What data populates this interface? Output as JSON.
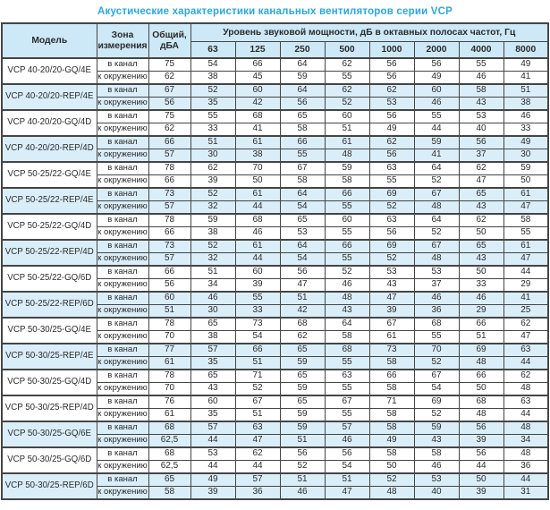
{
  "title": "Акустические характеристики канальных вентиляторов  серии VCP",
  "colors": {
    "title": "#29a8df",
    "header_bg": "#cde8f6",
    "shaded_row_bg": "#daeefa",
    "border": "#454545",
    "text": "#2b2b2b"
  },
  "table": {
    "headers": {
      "model": "Модель",
      "zone": "Зона\nизмерения",
      "total": "Общий,\nдБА",
      "bands": "Уровень звуковой мощности, дБ в октавных полосах частот, Гц"
    },
    "frequencies": [
      "63",
      "125",
      "250",
      "500",
      "1000",
      "2000",
      "4000",
      "8000"
    ],
    "zone_in_label": "в канал",
    "zone_out_label": "к окружению",
    "rows": [
      {
        "model": "VCP 40-20/20-GQ/4E",
        "shaded": false,
        "in_total": "75",
        "in_bands": [
          "54",
          "66",
          "64",
          "62",
          "56",
          "56",
          "55",
          "49"
        ],
        "out_total": "62",
        "out_bands": [
          "38",
          "45",
          "59",
          "55",
          "56",
          "49",
          "46",
          "41"
        ]
      },
      {
        "model": "VCP 40-20/20-REP/4E",
        "shaded": true,
        "in_total": "67",
        "in_bands": [
          "52",
          "60",
          "64",
          "62",
          "62",
          "60",
          "58",
          "51"
        ],
        "out_total": "56",
        "out_bands": [
          "35",
          "42",
          "56",
          "52",
          "53",
          "46",
          "43",
          "38"
        ]
      },
      {
        "model": "VCP 40-20/20-GQ/4D",
        "shaded": false,
        "in_total": "75",
        "in_bands": [
          "55",
          "68",
          "65",
          "60",
          "56",
          "55",
          "53",
          "46"
        ],
        "out_total": "62",
        "out_bands": [
          "33",
          "41",
          "58",
          "51",
          "49",
          "44",
          "40",
          "33"
        ]
      },
      {
        "model": "VCP 40-20/20-REP/4D",
        "shaded": true,
        "in_total": "66",
        "in_bands": [
          "51",
          "61",
          "66",
          "61",
          "62",
          "59",
          "56",
          "49"
        ],
        "out_total": "57",
        "out_bands": [
          "30",
          "38",
          "55",
          "48",
          "56",
          "41",
          "37",
          "30"
        ]
      },
      {
        "model": "VCP 50-25/22-GQ/4E",
        "shaded": false,
        "in_total": "78",
        "in_bands": [
          "62",
          "70",
          "67",
          "59",
          "63",
          "64",
          "62",
          "59"
        ],
        "out_total": "66",
        "out_bands": [
          "39",
          "50",
          "58",
          "58",
          "55",
          "52",
          "47",
          "50"
        ]
      },
      {
        "model": "VCP 50-25/22-REP/4E",
        "shaded": true,
        "in_total": "73",
        "in_bands": [
          "52",
          "61",
          "64",
          "66",
          "69",
          "67",
          "65",
          "61"
        ],
        "out_total": "57",
        "out_bands": [
          "32",
          "44",
          "54",
          "55",
          "52",
          "48",
          "43",
          "47"
        ]
      },
      {
        "model": "VCP 50-25/22-GQ/4D",
        "shaded": false,
        "in_total": "78",
        "in_bands": [
          "59",
          "68",
          "65",
          "60",
          "63",
          "64",
          "62",
          "58"
        ],
        "out_total": "66",
        "out_bands": [
          "38",
          "46",
          "53",
          "55",
          "56",
          "52",
          "50",
          "55"
        ]
      },
      {
        "model": "VCP 50-25/22-REP/4D",
        "shaded": true,
        "in_total": "73",
        "in_bands": [
          "52",
          "61",
          "64",
          "66",
          "69",
          "67",
          "65",
          "61"
        ],
        "out_total": "57",
        "out_bands": [
          "32",
          "44",
          "54",
          "55",
          "52",
          "48",
          "43",
          "47"
        ]
      },
      {
        "model": "VCP 50-25/22-GQ/6D",
        "shaded": false,
        "in_total": "66",
        "in_bands": [
          "51",
          "60",
          "56",
          "52",
          "53",
          "53",
          "50",
          "44"
        ],
        "out_total": "56",
        "out_bands": [
          "34",
          "39",
          "47",
          "46",
          "43",
          "37",
          "33",
          "29"
        ]
      },
      {
        "model": "VCP 50-25/22-REP/6D",
        "shaded": true,
        "in_total": "60",
        "in_bands": [
          "46",
          "55",
          "51",
          "48",
          "47",
          "46",
          "46",
          "41"
        ],
        "out_total": "51",
        "out_bands": [
          "30",
          "33",
          "42",
          "43",
          "39",
          "36",
          "29",
          "25"
        ]
      },
      {
        "model": "VCP 50-30/25-GQ/4E",
        "shaded": false,
        "in_total": "78",
        "in_bands": [
          "65",
          "73",
          "68",
          "64",
          "67",
          "68",
          "66",
          "62"
        ],
        "out_total": "70",
        "out_bands": [
          "38",
          "54",
          "62",
          "58",
          "61",
          "55",
          "51",
          "47"
        ]
      },
      {
        "model": "VCP 50-30/25-REP/4E",
        "shaded": true,
        "in_total": "77",
        "in_bands": [
          "57",
          "66",
          "65",
          "68",
          "73",
          "70",
          "69",
          "63"
        ],
        "out_total": "61",
        "out_bands": [
          "35",
          "51",
          "59",
          "55",
          "58",
          "52",
          "48",
          "44"
        ]
      },
      {
        "model": "VCP 50-30/25-GQ/4D",
        "shaded": false,
        "in_total": "78",
        "in_bands": [
          "65",
          "71",
          "65",
          "63",
          "66",
          "67",
          "66",
          "62"
        ],
        "out_total": "70",
        "out_bands": [
          "43",
          "52",
          "59",
          "55",
          "58",
          "54",
          "50",
          "48"
        ]
      },
      {
        "model": "VCP 50-30/25-REP/4D",
        "shaded": false,
        "in_total": "76",
        "in_bands": [
          "60",
          "67",
          "65",
          "67",
          "71",
          "69",
          "68",
          "63"
        ],
        "out_total": "61",
        "out_bands": [
          "35",
          "51",
          "59",
          "55",
          "58",
          "52",
          "48",
          "44"
        ]
      },
      {
        "model": "VCP 50-30/25-GQ/6E",
        "shaded": true,
        "in_total": "68",
        "in_bands": [
          "57",
          "63",
          "59",
          "57",
          "58",
          "59",
          "56",
          "48"
        ],
        "out_total": "62,5",
        "out_bands": [
          "44",
          "47",
          "51",
          "46",
          "49",
          "43",
          "39",
          "34"
        ]
      },
      {
        "model": "VCP 50-30/25-GQ/6D",
        "shaded": false,
        "in_total": "68",
        "in_bands": [
          "53",
          "62",
          "56",
          "56",
          "58",
          "58",
          "56",
          "48"
        ],
        "out_total": "62,5",
        "out_bands": [
          "44",
          "44",
          "52",
          "54",
          "50",
          "46",
          "44",
          "36"
        ]
      },
      {
        "model": "VCP 50-30/25-REP/6D",
        "shaded": true,
        "in_total": "65",
        "in_bands": [
          "49",
          "57",
          "51",
          "51",
          "52",
          "53",
          "50",
          "44"
        ],
        "out_total": "58",
        "out_bands": [
          "39",
          "36",
          "46",
          "47",
          "48",
          "40",
          "39",
          "31"
        ]
      }
    ]
  }
}
